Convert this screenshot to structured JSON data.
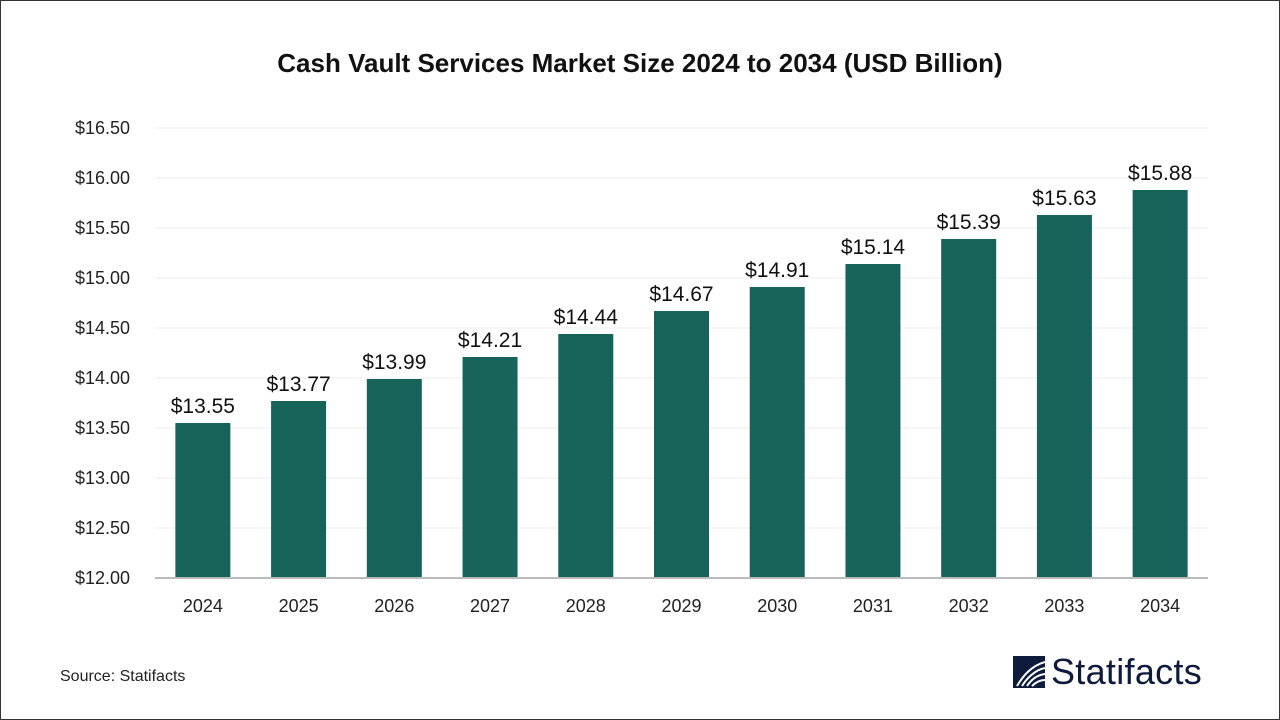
{
  "chart_data": {
    "type": "bar",
    "title": "Cash Vault Services Market Size 2024 to 2034 (USD Billion)",
    "categories": [
      "2024",
      "2025",
      "2026",
      "2027",
      "2028",
      "2029",
      "2030",
      "2031",
      "2032",
      "2033",
      "2034"
    ],
    "values": [
      13.55,
      13.77,
      13.99,
      14.21,
      14.44,
      14.67,
      14.91,
      15.14,
      15.39,
      15.63,
      15.88
    ],
    "data_labels": [
      "$13.55",
      "$13.77",
      "$13.99",
      "$14.21",
      "$14.44",
      "$14.67",
      "$14.91",
      "$15.14",
      "$15.39",
      "$15.63",
      "$15.88"
    ],
    "ylim": [
      12.0,
      16.5
    ],
    "yticks": [
      12.0,
      12.5,
      13.0,
      13.5,
      14.0,
      14.5,
      15.0,
      15.5,
      16.0,
      16.5
    ],
    "ytick_labels": [
      "$12.00",
      "$12.50",
      "$13.00",
      "$13.50",
      "$14.00",
      "$14.50",
      "$15.00",
      "$15.50",
      "$16.00",
      "$16.50"
    ],
    "xlabel": "",
    "ylabel": "",
    "grid": true,
    "bar_color": "#17635a"
  },
  "source": "Source: Statifacts",
  "logo": {
    "text": "Statifacts",
    "color": "#0f1b3d"
  }
}
